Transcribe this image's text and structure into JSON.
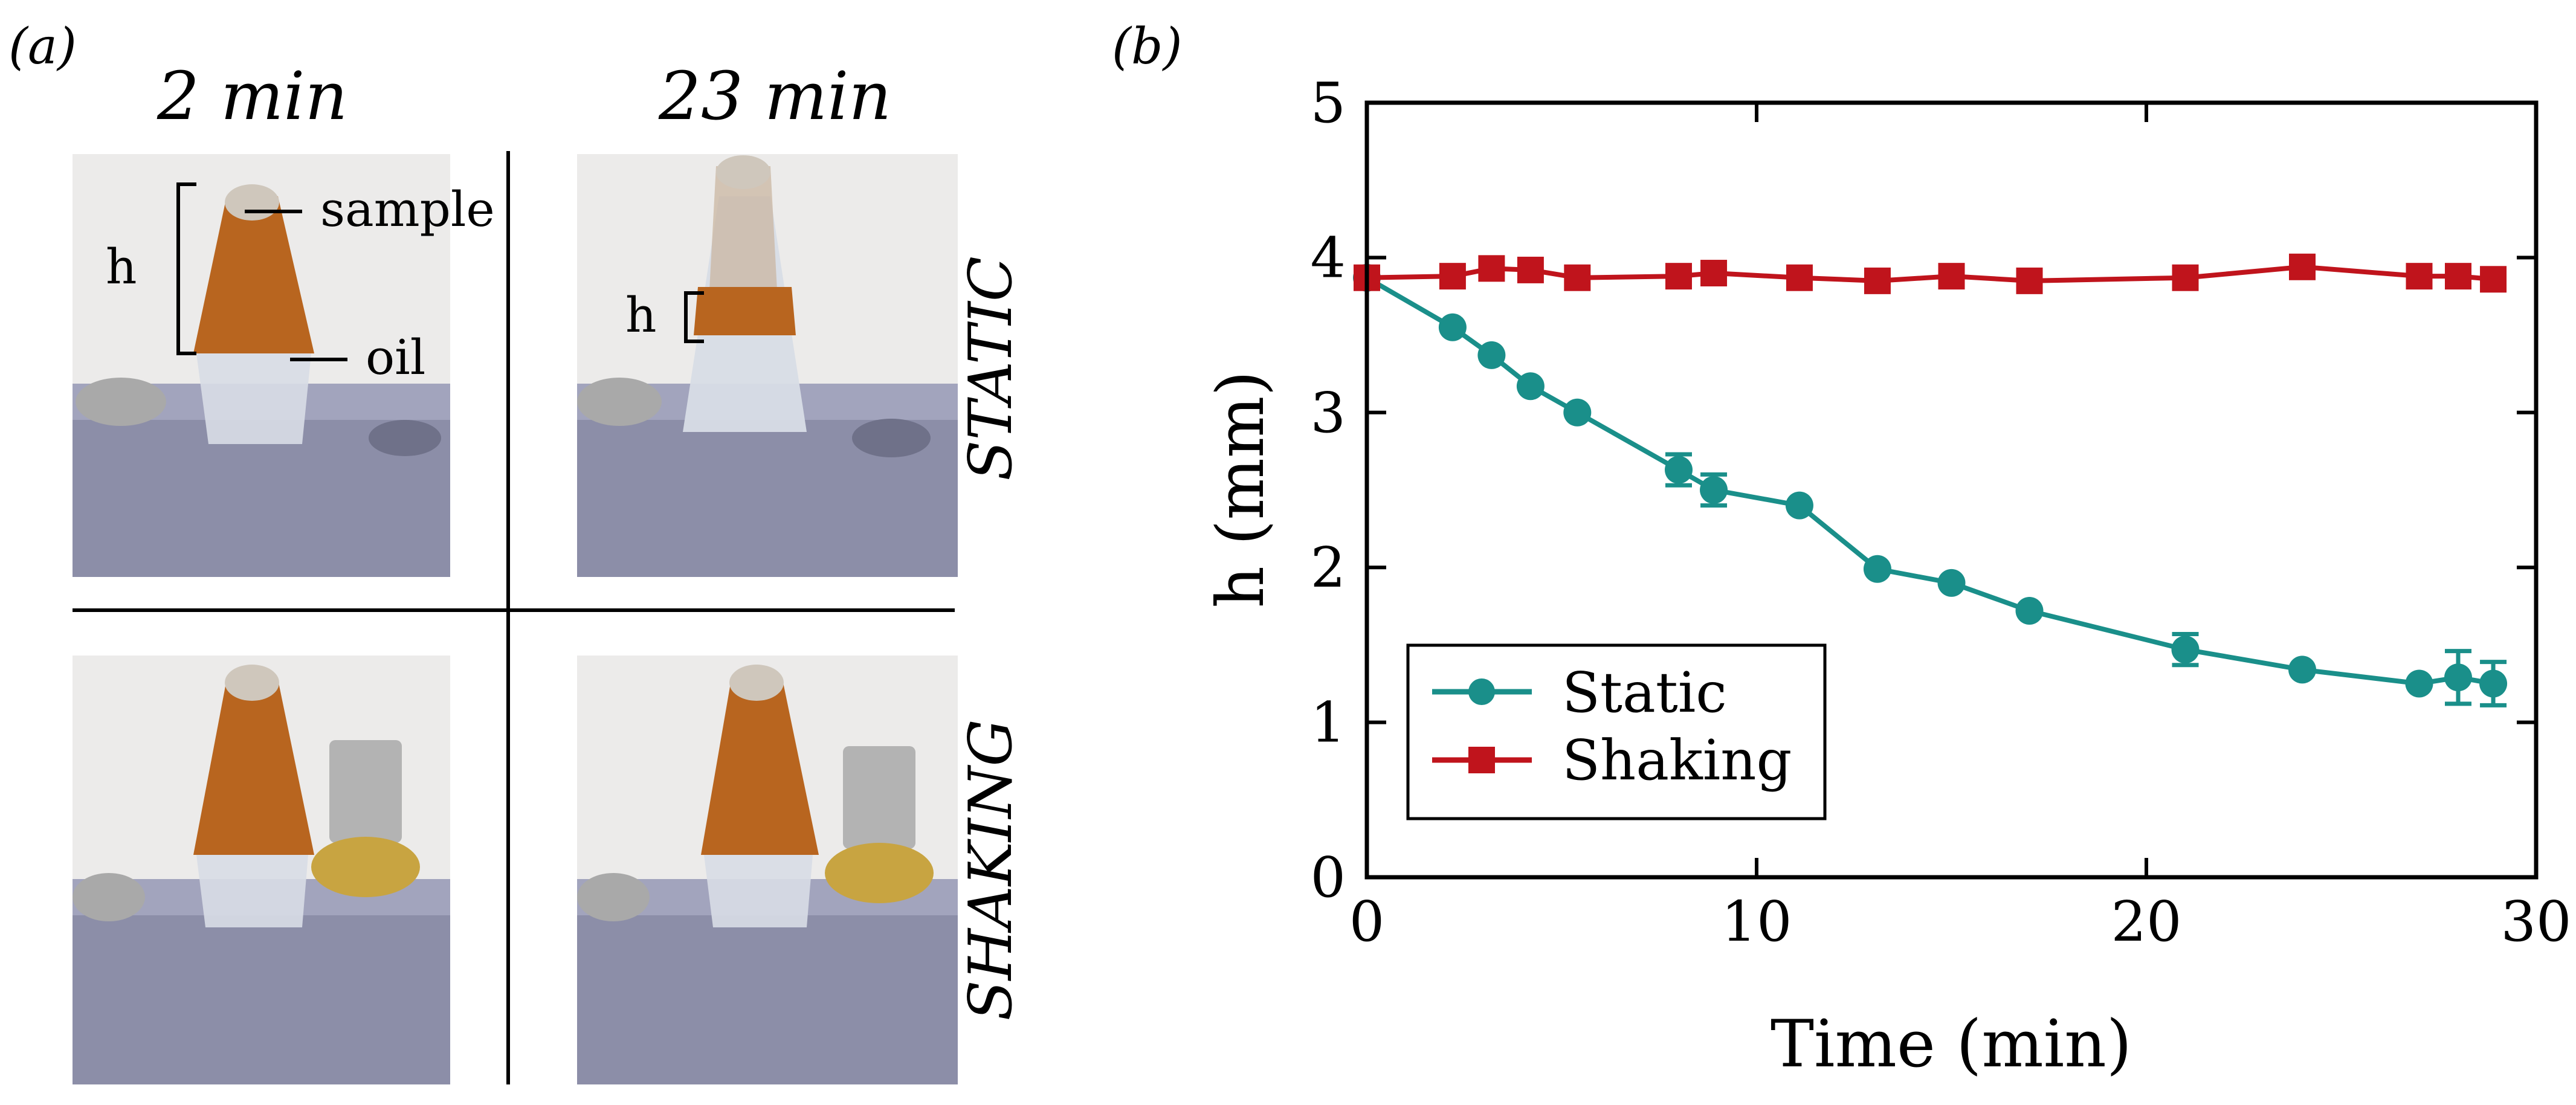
{
  "panel_a": {
    "label": "(a)",
    "col_headers": [
      "2 min",
      "23 min"
    ],
    "row_labels": [
      "STATIC",
      "SHAKING"
    ],
    "annotations": {
      "h_left": "h",
      "sample": "sample",
      "oil": "oil",
      "h_right": "h"
    },
    "colors": {
      "sample": "#b8651f",
      "holder": "#8c8ea8",
      "tube": "#d8dde6",
      "metal": "#a9a9a9"
    }
  },
  "panel_b": {
    "label": "(b)"
  },
  "chart_data": {
    "type": "line",
    "title": "",
    "xlabel": "Time (min)",
    "ylabel": "h (mm)",
    "xlim": [
      0,
      30
    ],
    "ylim": [
      0,
      5
    ],
    "xticks": [
      0,
      10,
      20,
      30
    ],
    "yticks": [
      0,
      1,
      2,
      3,
      4,
      5
    ],
    "grid": false,
    "legend": "lower-left",
    "series": [
      {
        "name": "Static",
        "color": "#1a8f8a",
        "marker": "circle",
        "x": [
          0,
          2.2,
          3.2,
          4.2,
          5.4,
          8.0,
          8.9,
          11.1,
          13.1,
          15.0,
          17.0,
          21.0,
          24.0,
          27.0,
          28.0,
          28.9
        ],
        "y": [
          3.87,
          3.55,
          3.37,
          3.17,
          3.0,
          2.63,
          2.5,
          2.4,
          1.99,
          1.9,
          1.72,
          1.47,
          1.34,
          1.25,
          1.29,
          1.25
        ],
        "err": [
          0,
          0,
          0,
          0,
          0,
          0.1,
          0.1,
          0,
          0,
          0,
          0,
          0.1,
          0,
          0,
          0.17,
          0.14
        ]
      },
      {
        "name": "Shaking",
        "color": "#c0141c",
        "marker": "square",
        "x": [
          0,
          2.2,
          3.2,
          4.2,
          5.4,
          8.0,
          8.9,
          11.1,
          13.1,
          15.0,
          17.0,
          21.0,
          24.0,
          27.0,
          28.0,
          28.9
        ],
        "y": [
          3.87,
          3.88,
          3.93,
          3.92,
          3.87,
          3.88,
          3.9,
          3.87,
          3.85,
          3.88,
          3.85,
          3.87,
          3.94,
          3.88,
          3.88,
          3.86
        ],
        "err": [
          0,
          0,
          0,
          0,
          0,
          0,
          0,
          0,
          0,
          0,
          0,
          0,
          0,
          0,
          0,
          0
        ]
      }
    ]
  }
}
